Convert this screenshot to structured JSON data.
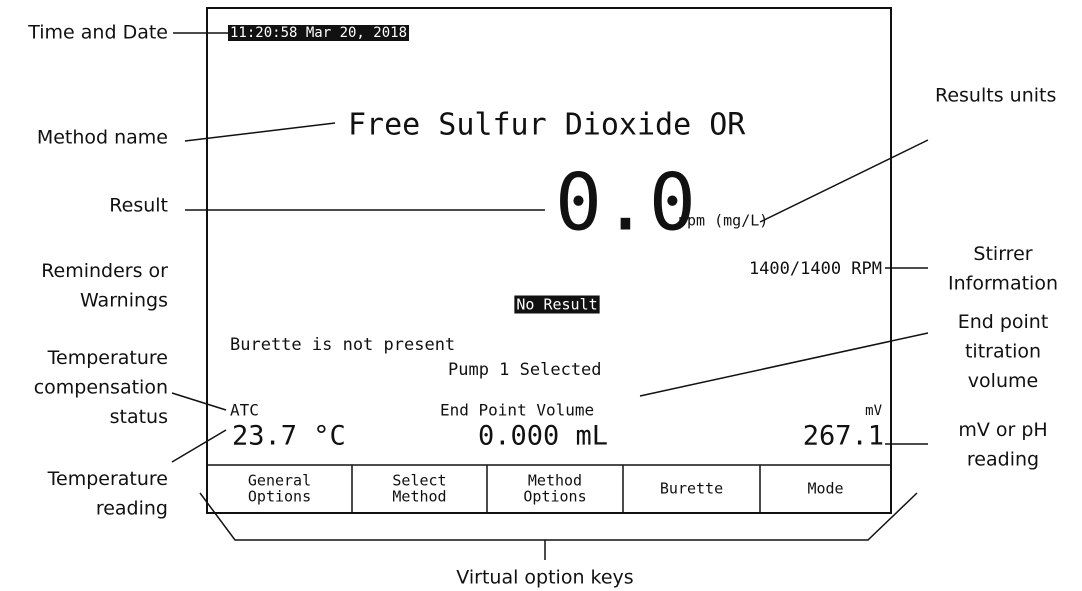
{
  "screen": {
    "datetime": "11:20:58 Mar 20, 2018",
    "method_name": "Free Sulfur Dioxide OR",
    "result": "0.0",
    "result_units": "ppm (mg/L)",
    "stirrer": "1400/1400 RPM",
    "status": "No Result",
    "messages": [
      "Burette is not present",
      "Pump 1 Selected"
    ],
    "reading_labels": [
      "ATC",
      "End Point Volume",
      "mV"
    ],
    "readings": [
      "23.7 °C",
      "0.000 mL",
      "267.1"
    ],
    "softkeys": [
      [
        "General",
        "Options"
      ],
      [
        "Select",
        "Method"
      ],
      [
        "Method",
        "Options"
      ],
      [
        "Burette"
      ],
      [
        "Mode"
      ]
    ]
  },
  "callouts": {
    "left": [
      [
        "Time and Date"
      ],
      [
        "Method name"
      ],
      [
        "Result"
      ],
      [
        "Reminders or",
        "Warnings"
      ],
      [
        "Temperature",
        "compensation",
        "status"
      ],
      [
        "Temperature",
        "reading"
      ]
    ],
    "right": [
      [
        "Results units"
      ],
      [
        "Stirrer",
        "Information"
      ],
      [
        "End point",
        "titration",
        "volume"
      ],
      [
        "mV or pH",
        "reading"
      ]
    ],
    "bottom": "Virtual option keys"
  }
}
